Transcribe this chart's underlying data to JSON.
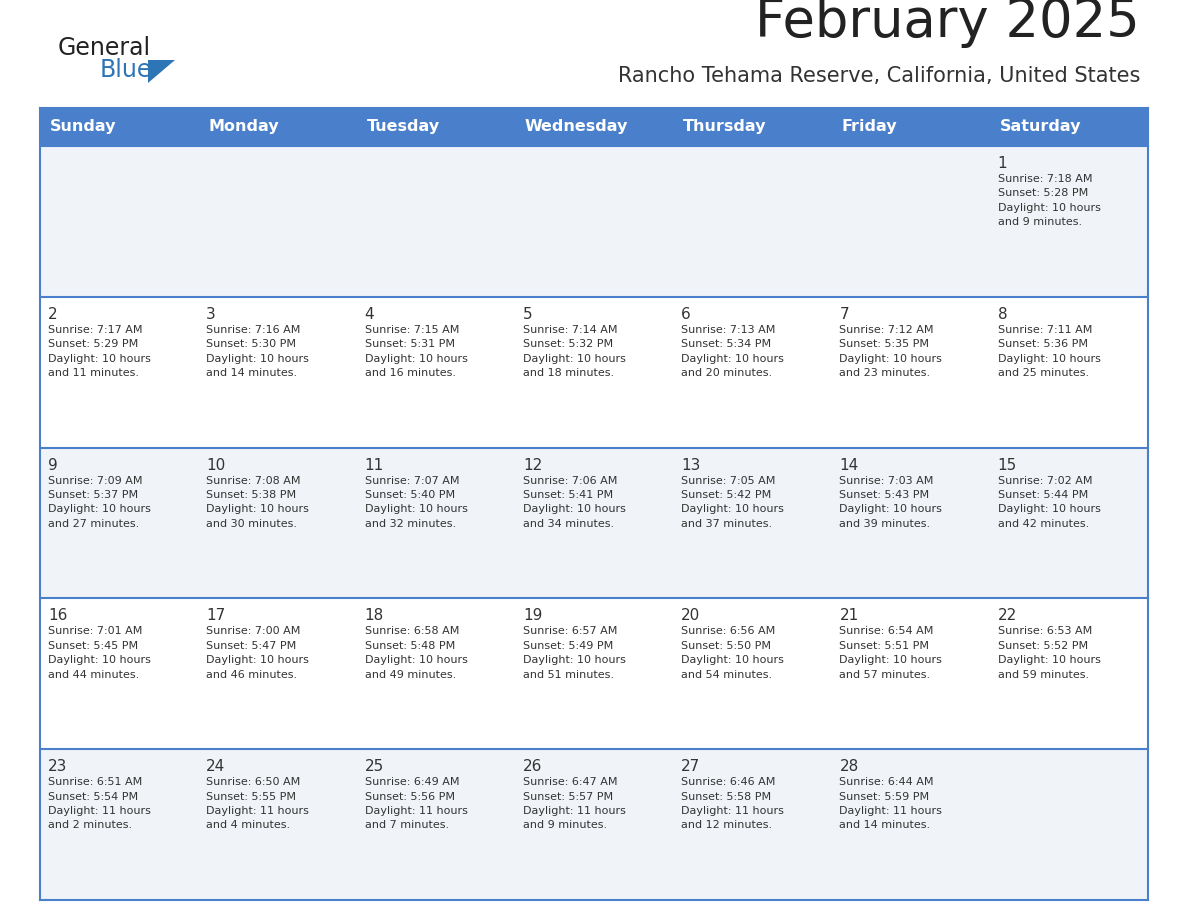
{
  "title": "February 2025",
  "subtitle": "Rancho Tehama Reserve, California, United States",
  "header_bg": "#4a7fcb",
  "header_text_color": "#FFFFFF",
  "days_of_week": [
    "Sunday",
    "Monday",
    "Tuesday",
    "Wednesday",
    "Thursday",
    "Friday",
    "Saturday"
  ],
  "row_bg_light": "#f0f4f8",
  "row_bg_white": "#FFFFFF",
  "cell_text_color": "#333333",
  "border_color": "#4a7fcb",
  "title_color": "#222222",
  "subtitle_color": "#333333",
  "logo_general_color": "#222222",
  "logo_blue_color": "#2E75B6",
  "calendar": [
    [
      {
        "day": "",
        "info": ""
      },
      {
        "day": "",
        "info": ""
      },
      {
        "day": "",
        "info": ""
      },
      {
        "day": "",
        "info": ""
      },
      {
        "day": "",
        "info": ""
      },
      {
        "day": "",
        "info": ""
      },
      {
        "day": "1",
        "info": "Sunrise: 7:18 AM\nSunset: 5:28 PM\nDaylight: 10 hours\nand 9 minutes."
      }
    ],
    [
      {
        "day": "2",
        "info": "Sunrise: 7:17 AM\nSunset: 5:29 PM\nDaylight: 10 hours\nand 11 minutes."
      },
      {
        "day": "3",
        "info": "Sunrise: 7:16 AM\nSunset: 5:30 PM\nDaylight: 10 hours\nand 14 minutes."
      },
      {
        "day": "4",
        "info": "Sunrise: 7:15 AM\nSunset: 5:31 PM\nDaylight: 10 hours\nand 16 minutes."
      },
      {
        "day": "5",
        "info": "Sunrise: 7:14 AM\nSunset: 5:32 PM\nDaylight: 10 hours\nand 18 minutes."
      },
      {
        "day": "6",
        "info": "Sunrise: 7:13 AM\nSunset: 5:34 PM\nDaylight: 10 hours\nand 20 minutes."
      },
      {
        "day": "7",
        "info": "Sunrise: 7:12 AM\nSunset: 5:35 PM\nDaylight: 10 hours\nand 23 minutes."
      },
      {
        "day": "8",
        "info": "Sunrise: 7:11 AM\nSunset: 5:36 PM\nDaylight: 10 hours\nand 25 minutes."
      }
    ],
    [
      {
        "day": "9",
        "info": "Sunrise: 7:09 AM\nSunset: 5:37 PM\nDaylight: 10 hours\nand 27 minutes."
      },
      {
        "day": "10",
        "info": "Sunrise: 7:08 AM\nSunset: 5:38 PM\nDaylight: 10 hours\nand 30 minutes."
      },
      {
        "day": "11",
        "info": "Sunrise: 7:07 AM\nSunset: 5:40 PM\nDaylight: 10 hours\nand 32 minutes."
      },
      {
        "day": "12",
        "info": "Sunrise: 7:06 AM\nSunset: 5:41 PM\nDaylight: 10 hours\nand 34 minutes."
      },
      {
        "day": "13",
        "info": "Sunrise: 7:05 AM\nSunset: 5:42 PM\nDaylight: 10 hours\nand 37 minutes."
      },
      {
        "day": "14",
        "info": "Sunrise: 7:03 AM\nSunset: 5:43 PM\nDaylight: 10 hours\nand 39 minutes."
      },
      {
        "day": "15",
        "info": "Sunrise: 7:02 AM\nSunset: 5:44 PM\nDaylight: 10 hours\nand 42 minutes."
      }
    ],
    [
      {
        "day": "16",
        "info": "Sunrise: 7:01 AM\nSunset: 5:45 PM\nDaylight: 10 hours\nand 44 minutes."
      },
      {
        "day": "17",
        "info": "Sunrise: 7:00 AM\nSunset: 5:47 PM\nDaylight: 10 hours\nand 46 minutes."
      },
      {
        "day": "18",
        "info": "Sunrise: 6:58 AM\nSunset: 5:48 PM\nDaylight: 10 hours\nand 49 minutes."
      },
      {
        "day": "19",
        "info": "Sunrise: 6:57 AM\nSunset: 5:49 PM\nDaylight: 10 hours\nand 51 minutes."
      },
      {
        "day": "20",
        "info": "Sunrise: 6:56 AM\nSunset: 5:50 PM\nDaylight: 10 hours\nand 54 minutes."
      },
      {
        "day": "21",
        "info": "Sunrise: 6:54 AM\nSunset: 5:51 PM\nDaylight: 10 hours\nand 57 minutes."
      },
      {
        "day": "22",
        "info": "Sunrise: 6:53 AM\nSunset: 5:52 PM\nDaylight: 10 hours\nand 59 minutes."
      }
    ],
    [
      {
        "day": "23",
        "info": "Sunrise: 6:51 AM\nSunset: 5:54 PM\nDaylight: 11 hours\nand 2 minutes."
      },
      {
        "day": "24",
        "info": "Sunrise: 6:50 AM\nSunset: 5:55 PM\nDaylight: 11 hours\nand 4 minutes."
      },
      {
        "day": "25",
        "info": "Sunrise: 6:49 AM\nSunset: 5:56 PM\nDaylight: 11 hours\nand 7 minutes."
      },
      {
        "day": "26",
        "info": "Sunrise: 6:47 AM\nSunset: 5:57 PM\nDaylight: 11 hours\nand 9 minutes."
      },
      {
        "day": "27",
        "info": "Sunrise: 6:46 AM\nSunset: 5:58 PM\nDaylight: 11 hours\nand 12 minutes."
      },
      {
        "day": "28",
        "info": "Sunrise: 6:44 AM\nSunset: 5:59 PM\nDaylight: 11 hours\nand 14 minutes."
      },
      {
        "day": "",
        "info": ""
      }
    ]
  ]
}
